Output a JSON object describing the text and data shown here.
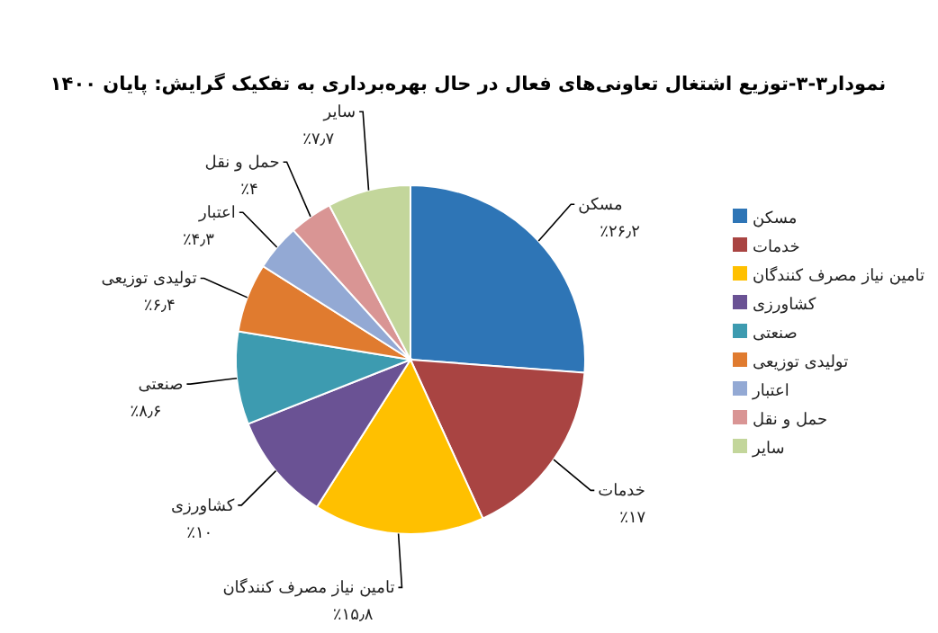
{
  "chart_data": {
    "type": "pie",
    "title": "نمودار۳-۳-توزیع اشتغال تعاونی‌های فعال در حال بهره‌برداری به تفکیک گرایش: پایان ۱۴۰۰",
    "categories": [
      "مسکن",
      "خدمات",
      "تامین نیاز مصرف کنندگان",
      "کشاورزی",
      "صنعتی",
      "تولیدی توزیعی",
      "اعتبار",
      "حمل و نقل",
      "سایر"
    ],
    "values": [
      26.2,
      17,
      15.8,
      10,
      8.6,
      6.4,
      4.3,
      4,
      7.7
    ],
    "value_labels": [
      "٪۲۶٫۲",
      "٪۱۷",
      "٪۱۵٫۸",
      "٪۱۰",
      "٪۸٫۶",
      "٪۶٫۴",
      "٪۴٫۳",
      "٪۴",
      "٪۷٫۷"
    ],
    "colors": [
      "#2e75b6",
      "#a94442",
      "#ffc000",
      "#6a5294",
      "#3d9bb0",
      "#e07b2f",
      "#93a9d4",
      "#d99594",
      "#c3d69b"
    ],
    "legend": "right"
  }
}
